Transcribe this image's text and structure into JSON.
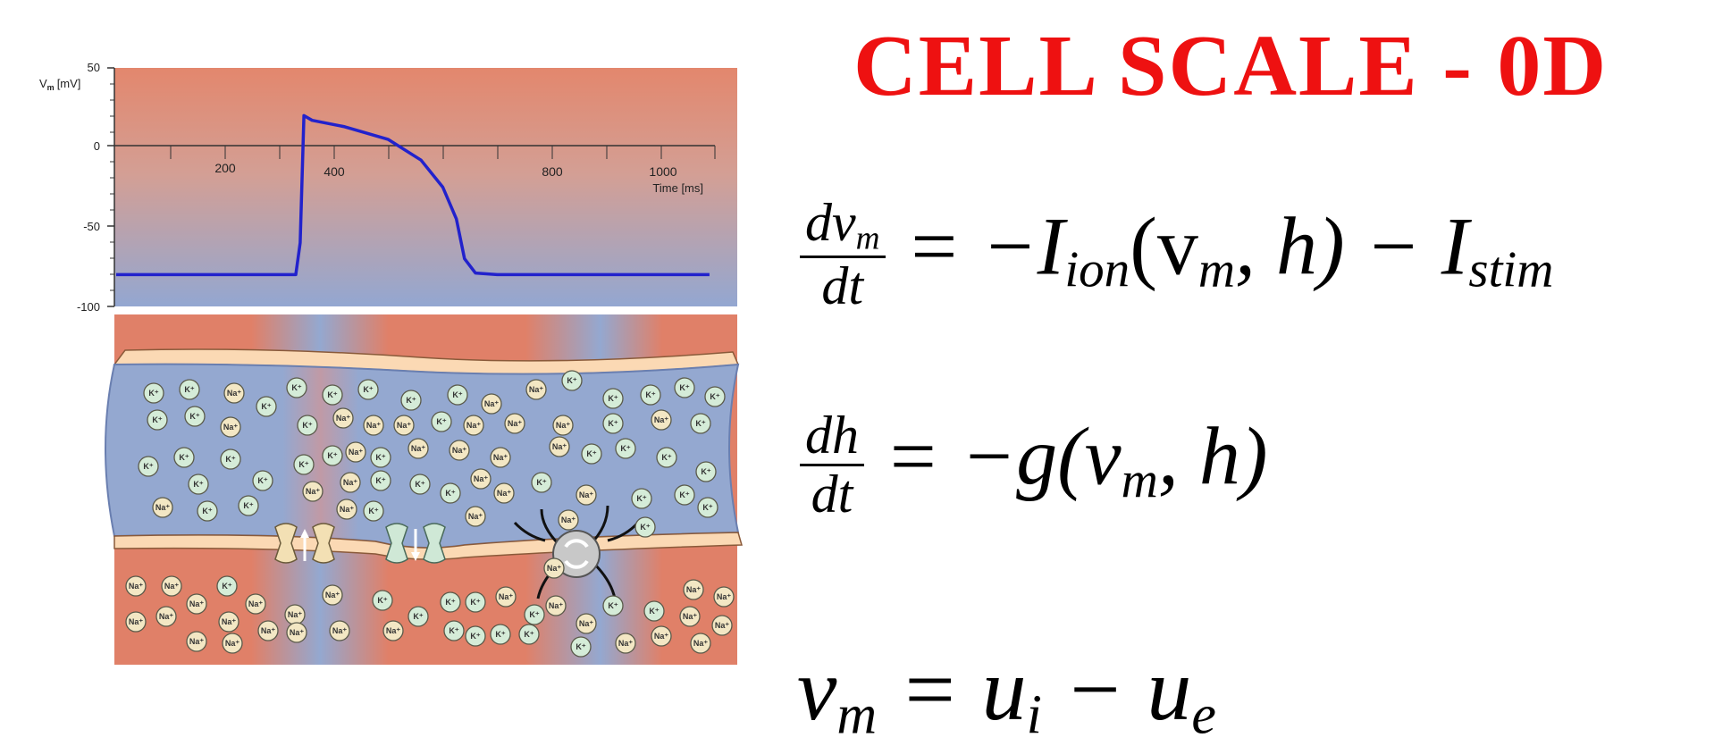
{
  "title": "CELL SCALE - 0D",
  "equations": {
    "eq1": {
      "numerator": "dv",
      "numerator_sub": "m",
      "denominator": "dt",
      "rhs_a": "= −I",
      "rhs_a_sub": "ion",
      "rhs_b": "(v",
      "rhs_b_sub": "m",
      "rhs_c": ", h) − I",
      "rhs_c_sub": "stim"
    },
    "eq2": {
      "numerator": "dh",
      "denominator": "dt",
      "rhs_a": "= −g(v",
      "rhs_a_sub": "m",
      "rhs_b": ", h)"
    },
    "eq3": {
      "lhs": "v",
      "lhs_sub": "m",
      "rhs_a": "= u",
      "rhs_a_sub": "i",
      "rhs_b": " − u",
      "rhs_b_sub": "e"
    }
  },
  "plot": {
    "y_label_main": "V",
    "y_label_sub": "m",
    "y_label_unit": "[mV]",
    "y_ticks": [
      "50",
      "0",
      "-50",
      "-100"
    ],
    "x_ticks": [
      "200",
      "400",
      "800",
      "1000"
    ],
    "x_label": "Time [ms]",
    "chart_data": {
      "type": "line",
      "xlabel": "Time [ms]",
      "ylabel": "Vm [mV]",
      "xlim": [
        0,
        1100
      ],
      "ylim": [
        -100,
        50
      ],
      "x": [
        0,
        330,
        338,
        345,
        360,
        420,
        500,
        560,
        600,
        625,
        640,
        660,
        700,
        800,
        1000,
        1090
      ],
      "y": [
        -80,
        -80,
        -60,
        20,
        17,
        13,
        5,
        -8,
        -25,
        -45,
        -70,
        -79,
        -80,
        -80,
        -80,
        -80
      ]
    }
  },
  "ions": {
    "k": "K⁺",
    "na": "Na⁺"
  },
  "colors": {
    "title": "#ee1111",
    "trace": "#2222cc",
    "extracellular": "#e08068",
    "intracellular": "#94a8d0",
    "membrane": "#fbd9b4",
    "k_ion": "#d5ecd8",
    "na_ion": "#f3e7c4"
  }
}
